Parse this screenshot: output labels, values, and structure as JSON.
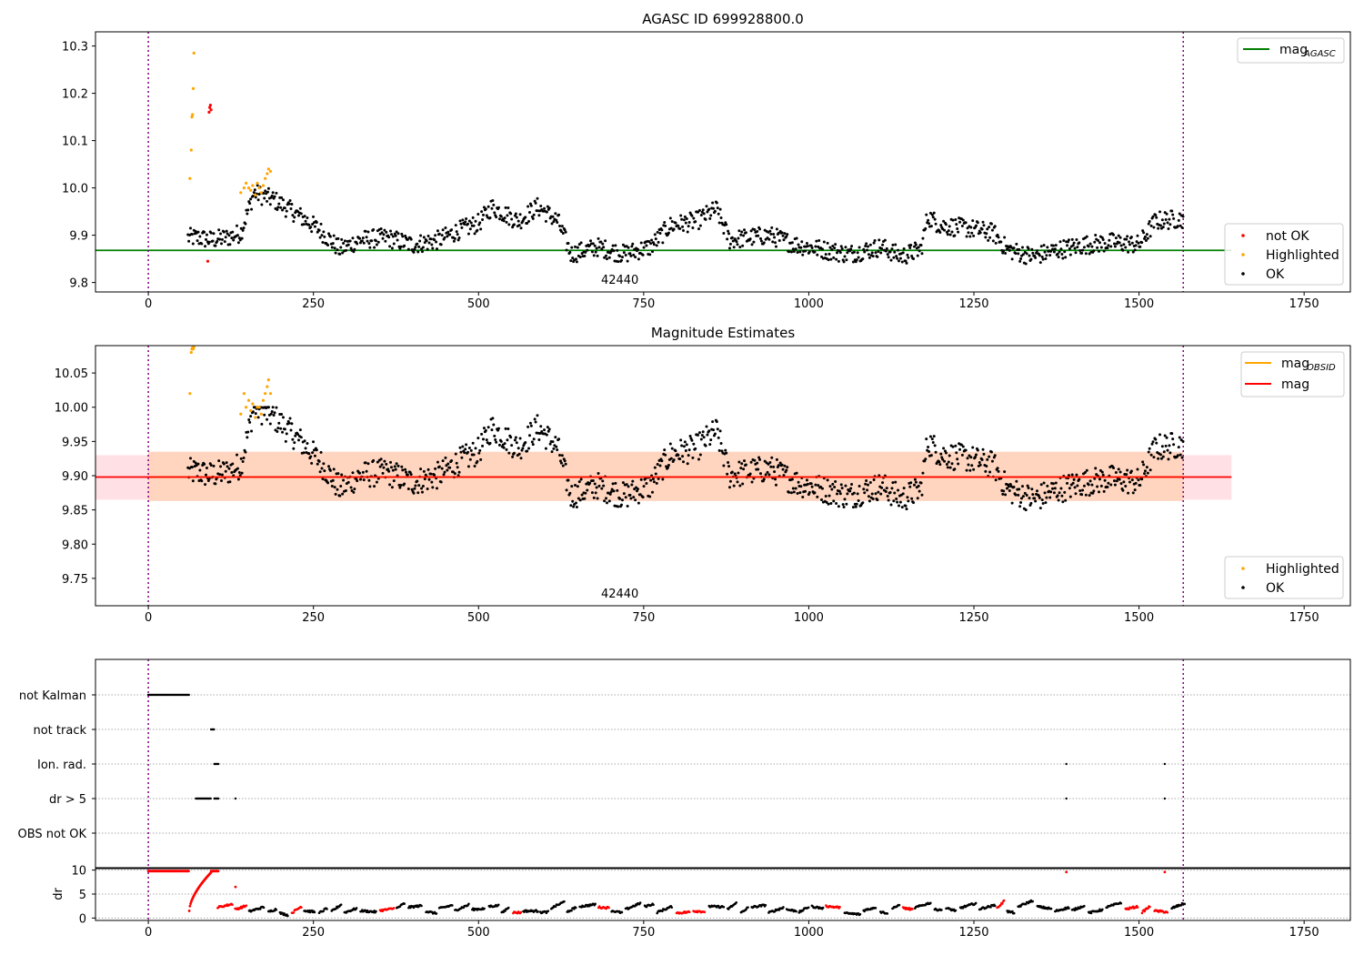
{
  "chart_data": [
    {
      "type": "scatter",
      "title": "AGASC ID 699928800.0",
      "xlim": [
        -80,
        1820
      ],
      "ylim": [
        9.78,
        10.33
      ],
      "xticks": [
        0,
        250,
        500,
        750,
        1000,
        1250,
        1500,
        1750
      ],
      "yticks": [
        9.8,
        9.9,
        10.0,
        10.1,
        10.2,
        10.3
      ],
      "yticklabels": [
        "9.8",
        "9.9",
        "10.0",
        "10.1",
        "10.2",
        "10.3"
      ],
      "vlines": [
        0,
        1567
      ],
      "vline_color": "#800080",
      "hline": {
        "name": "mag",
        "subscript": "AGASC",
        "value": 9.868,
        "x_range": [
          -80,
          1640
        ],
        "color": "#008000"
      },
      "annotation": {
        "text": "42440",
        "x": 780
      },
      "legend_top": [
        {
          "label": "mag",
          "subscript": "AGASC",
          "color": "#008000",
          "kind": "line"
        }
      ],
      "legend_bottom": [
        {
          "label": "not OK",
          "color": "#ff0000",
          "kind": "dot"
        },
        {
          "label": "Highlighted",
          "color": "#ffa500",
          "kind": "dot"
        },
        {
          "label": "OK",
          "color": "#000000",
          "kind": "dot"
        }
      ],
      "series": [
        {
          "name": "not OK",
          "color": "#ff0000",
          "points": [
            [
              90,
              9.845
            ],
            [
              92,
              10.16
            ],
            [
              93,
              10.17
            ],
            [
              94,
              10.175
            ],
            [
              95,
              10.165
            ]
          ]
        },
        {
          "name": "Highlighted",
          "color": "#ffa500",
          "points": [
            [
              63,
              10.02
            ],
            [
              65,
              10.08
            ],
            [
              66,
              10.15
            ],
            [
              67,
              10.155
            ],
            [
              68,
              10.21
            ],
            [
              69,
              10.285
            ],
            [
              140,
              9.99
            ],
            [
              145,
              10.0
            ],
            [
              148,
              10.01
            ],
            [
              152,
              10.0
            ],
            [
              155,
              9.995
            ],
            [
              158,
              10.005
            ],
            [
              162,
              9.985
            ],
            [
              165,
              10.01
            ],
            [
              168,
              10.0
            ],
            [
              171,
              9.99
            ],
            [
              174,
              10.005
            ],
            [
              177,
              10.02
            ],
            [
              180,
              10.03
            ],
            [
              182,
              10.04
            ],
            [
              185,
              10.035
            ]
          ]
        },
        {
          "name": "OK",
          "color": "#000000",
          "stride": 3,
          "points": []
        }
      ],
      "ok_anchors": [
        [
          60,
          9.895
        ],
        [
          75,
          9.895
        ],
        [
          95,
          9.89
        ],
        [
          120,
          9.895
        ],
        [
          140,
          9.905
        ],
        [
          160,
          9.99
        ],
        [
          190,
          9.975
        ],
        [
          230,
          9.94
        ],
        [
          260,
          9.91
        ],
        [
          290,
          9.87
        ],
        [
          320,
          9.89
        ],
        [
          360,
          9.895
        ],
        [
          400,
          9.88
        ],
        [
          440,
          9.89
        ],
        [
          470,
          9.91
        ],
        [
          500,
          9.925
        ],
        [
          520,
          9.96
        ],
        [
          560,
          9.93
        ],
        [
          590,
          9.96
        ],
        [
          620,
          9.93
        ],
        [
          640,
          9.86
        ],
        [
          680,
          9.875
        ],
        [
          720,
          9.86
        ],
        [
          760,
          9.875
        ],
        [
          790,
          9.92
        ],
        [
          830,
          9.93
        ],
        [
          860,
          9.955
        ],
        [
          880,
          9.89
        ],
        [
          940,
          9.9
        ],
        [
          980,
          9.88
        ],
        [
          1020,
          9.87
        ],
        [
          1060,
          9.86
        ],
        [
          1110,
          9.875
        ],
        [
          1140,
          9.855
        ],
        [
          1170,
          9.87
        ],
        [
          1180,
          9.94
        ],
        [
          1200,
          9.92
        ],
        [
          1240,
          9.915
        ],
        [
          1280,
          9.905
        ],
        [
          1300,
          9.87
        ],
        [
          1340,
          9.855
        ],
        [
          1380,
          9.87
        ],
        [
          1420,
          9.88
        ],
        [
          1460,
          9.885
        ],
        [
          1500,
          9.88
        ],
        [
          1525,
          9.93
        ],
        [
          1565,
          9.935
        ]
      ]
    },
    {
      "type": "scatter",
      "title": "Magnitude Estimates",
      "xlim": [
        -80,
        1820
      ],
      "ylim": [
        9.71,
        10.09
      ],
      "xticks": [
        0,
        250,
        500,
        750,
        1000,
        1250,
        1500,
        1750
      ],
      "yticks": [
        9.75,
        9.8,
        9.85,
        9.9,
        9.95,
        10.0,
        10.05
      ],
      "yticklabels": [
        "9.75",
        "9.80",
        "9.85",
        "9.90",
        "9.95",
        "10.00",
        "10.05"
      ],
      "vlines": [
        0,
        1567
      ],
      "vline_color": "#800080",
      "band_mag": {
        "value": 9.898,
        "low": 9.865,
        "high": 9.93,
        "x_range": [
          -80,
          1640
        ],
        "color": "#ff0000",
        "fill": "#ffe0e4"
      },
      "band_obsid": {
        "value": 9.898,
        "low": 9.863,
        "high": 9.935,
        "x_range": [
          0,
          1567
        ],
        "color": "#ffa500",
        "fill": "#ffd5c0"
      },
      "annotation": {
        "text": "42440",
        "x": 780
      },
      "legend_top": [
        {
          "label": "mag",
          "subscript": "OBSID",
          "color": "#ffa500",
          "kind": "line"
        },
        {
          "label": "mag",
          "subscript": "",
          "color": "#ff0000",
          "kind": "line"
        }
      ],
      "legend_bottom": [
        {
          "label": "Highlighted",
          "color": "#ffa500",
          "kind": "dot"
        },
        {
          "label": "OK",
          "color": "#000000",
          "kind": "dot"
        }
      ],
      "series": [
        {
          "name": "Highlighted",
          "color": "#ffa500",
          "points": [
            [
              63,
              10.02
            ],
            [
              65,
              10.08
            ],
            [
              66,
              10.085
            ],
            [
              67,
              10.087
            ],
            [
              68,
              10.085
            ],
            [
              69,
              10.088
            ],
            [
              140,
              9.99
            ],
            [
              145,
              10.02
            ],
            [
              148,
              10.0
            ],
            [
              152,
              10.01
            ],
            [
              155,
              9.995
            ],
            [
              158,
              10.005
            ],
            [
              162,
              9.985
            ],
            [
              165,
              10.0
            ],
            [
              168,
              10.0
            ],
            [
              171,
              9.99
            ],
            [
              174,
              10.01
            ],
            [
              177,
              10.02
            ],
            [
              180,
              10.03
            ],
            [
              182,
              10.04
            ],
            [
              185,
              10.02
            ]
          ]
        },
        {
          "name": "OK",
          "color": "#000000",
          "points": []
        }
      ]
    },
    {
      "type": "scatter",
      "title": "",
      "xlim": [
        -80,
        1820
      ],
      "categories": [
        "not Kalman",
        "not track",
        "Ion. rad.",
        "dr > 5",
        "OBS not OK"
      ],
      "flags": [
        {
          "category": "not Kalman",
          "x_ranges": [
            [
              0,
              62
            ]
          ],
          "points": []
        },
        {
          "category": "not track",
          "x_ranges": [
            [
              95,
              100
            ]
          ],
          "points": []
        },
        {
          "category": "Ion. rad.",
          "x_ranges": [
            [
              100,
              107
            ]
          ],
          "points": [
            1390,
            1539
          ]
        },
        {
          "category": "dr > 5",
          "x_ranges": [
            [
              72,
              95
            ],
            [
              100,
              107
            ]
          ],
          "points": [
            132,
            1390,
            1539
          ]
        },
        {
          "category": "OBS not OK",
          "x_ranges": [],
          "points": []
        }
      ],
      "vlines": [
        0,
        1567
      ],
      "vline_color": "#800080"
    },
    {
      "type": "scatter",
      "title": "",
      "xlim": [
        -80,
        1820
      ],
      "ylim": [
        -0.5,
        10.5
      ],
      "ylabel": "dr",
      "xticks": [
        0,
        250,
        500,
        750,
        1000,
        1250,
        1500,
        1750
      ],
      "yticks": [
        0,
        5,
        10
      ],
      "yticklabels": [
        "0",
        "5",
        "10"
      ],
      "vlines": [
        0,
        1567
      ],
      "vline_color": "#800080",
      "red_flat": {
        "x_range": [
          0,
          62
        ],
        "value": 9.8
      },
      "red_isolated": [
        [
          132,
          6.5
        ],
        [
          1390,
          9.6
        ],
        [
          1539,
          9.6
        ]
      ]
    }
  ]
}
